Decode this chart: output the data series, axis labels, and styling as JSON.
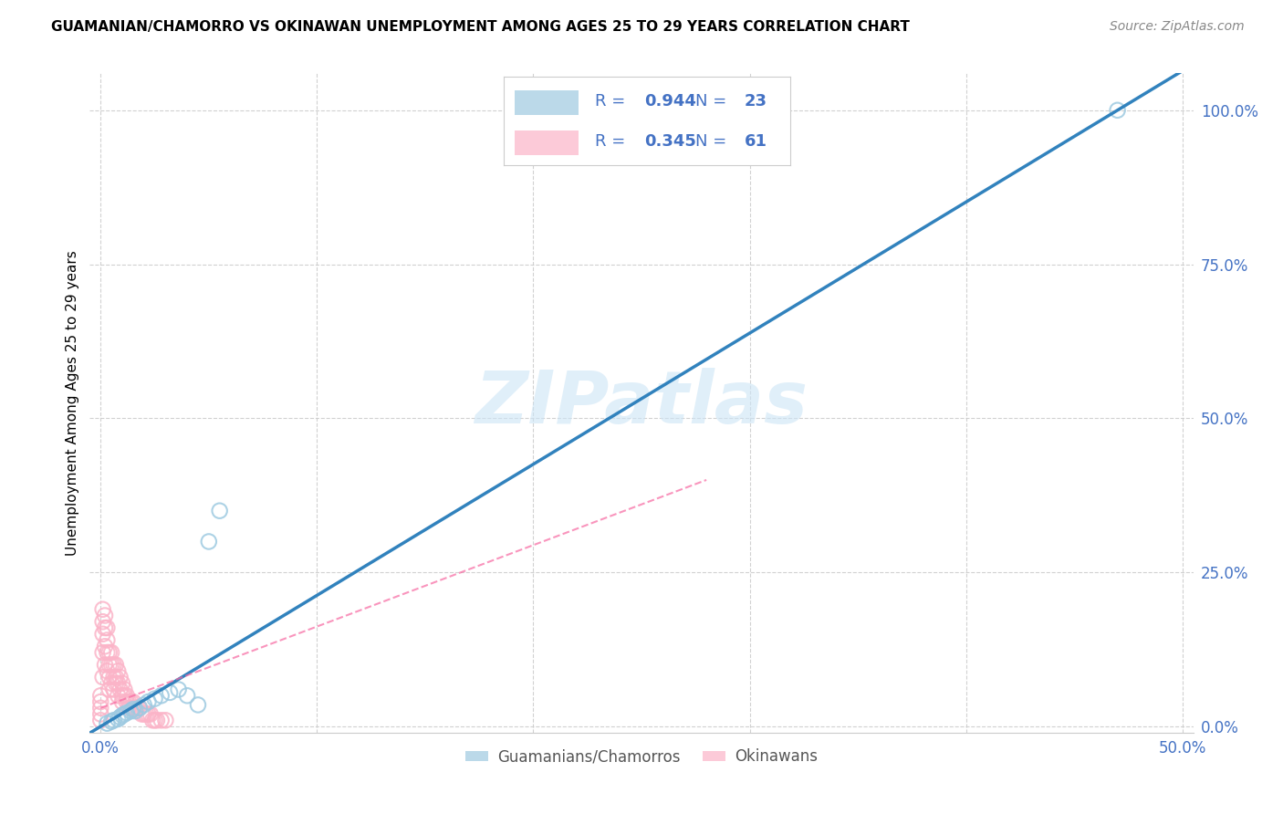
{
  "title": "GUAMANIAN/CHAMORRO VS OKINAWAN UNEMPLOYMENT AMONG AGES 25 TO 29 YEARS CORRELATION CHART",
  "source": "Source: ZipAtlas.com",
  "ylabel": "Unemployment Among Ages 25 to 29 years",
  "xlim": [
    -0.005,
    0.505
  ],
  "ylim": [
    -0.01,
    1.06
  ],
  "x_ticks": [
    0.0,
    0.1,
    0.2,
    0.3,
    0.4,
    0.5
  ],
  "x_tick_labels": [
    "0.0%",
    "",
    "",
    "",
    "",
    "50.0%"
  ],
  "y_ticks": [
    0.0,
    0.25,
    0.5,
    0.75,
    1.0
  ],
  "y_tick_labels": [
    "0.0%",
    "25.0%",
    "50.0%",
    "75.0%",
    "100.0%"
  ],
  "blue_R": "0.944",
  "blue_N": "23",
  "pink_R": "0.345",
  "pink_N": "61",
  "blue_color": "#9ecae1",
  "pink_color": "#fbb4c8",
  "blue_line_color": "#3182bd",
  "pink_line_color": "#f768a1",
  "tick_color": "#4472c4",
  "watermark": "ZIPatlas",
  "blue_x": [
    0.003,
    0.005,
    0.006,
    0.008,
    0.009,
    0.01,
    0.011,
    0.012,
    0.014,
    0.015,
    0.016,
    0.018,
    0.02,
    0.022,
    0.025,
    0.028,
    0.032,
    0.036,
    0.04,
    0.045,
    0.05,
    0.055,
    0.47
  ],
  "blue_y": [
    0.005,
    0.008,
    0.01,
    0.012,
    0.015,
    0.018,
    0.02,
    0.022,
    0.025,
    0.028,
    0.025,
    0.03,
    0.035,
    0.04,
    0.045,
    0.05,
    0.055,
    0.06,
    0.05,
    0.035,
    0.3,
    0.35,
    1.0
  ],
  "pink_x": [
    0.0,
    0.0,
    0.0,
    0.0,
    0.0,
    0.001,
    0.001,
    0.001,
    0.001,
    0.001,
    0.002,
    0.002,
    0.002,
    0.002,
    0.003,
    0.003,
    0.003,
    0.003,
    0.004,
    0.004,
    0.004,
    0.004,
    0.005,
    0.005,
    0.005,
    0.006,
    0.006,
    0.006,
    0.007,
    0.007,
    0.007,
    0.008,
    0.008,
    0.008,
    0.009,
    0.009,
    0.01,
    0.01,
    0.01,
    0.011,
    0.011,
    0.012,
    0.012,
    0.013,
    0.013,
    0.014,
    0.015,
    0.015,
    0.016,
    0.017,
    0.018,
    0.019,
    0.02,
    0.021,
    0.022,
    0.023,
    0.024,
    0.025,
    0.026,
    0.028,
    0.03
  ],
  "pink_y": [
    0.01,
    0.02,
    0.03,
    0.04,
    0.05,
    0.15,
    0.17,
    0.19,
    0.12,
    0.08,
    0.13,
    0.16,
    0.18,
    0.1,
    0.12,
    0.14,
    0.16,
    0.09,
    0.1,
    0.12,
    0.08,
    0.06,
    0.1,
    0.12,
    0.07,
    0.08,
    0.1,
    0.06,
    0.08,
    0.1,
    0.07,
    0.07,
    0.09,
    0.05,
    0.06,
    0.08,
    0.05,
    0.07,
    0.04,
    0.05,
    0.06,
    0.05,
    0.04,
    0.04,
    0.03,
    0.04,
    0.04,
    0.03,
    0.03,
    0.03,
    0.03,
    0.02,
    0.02,
    0.02,
    0.02,
    0.02,
    0.01,
    0.01,
    0.01,
    0.01,
    0.01
  ]
}
